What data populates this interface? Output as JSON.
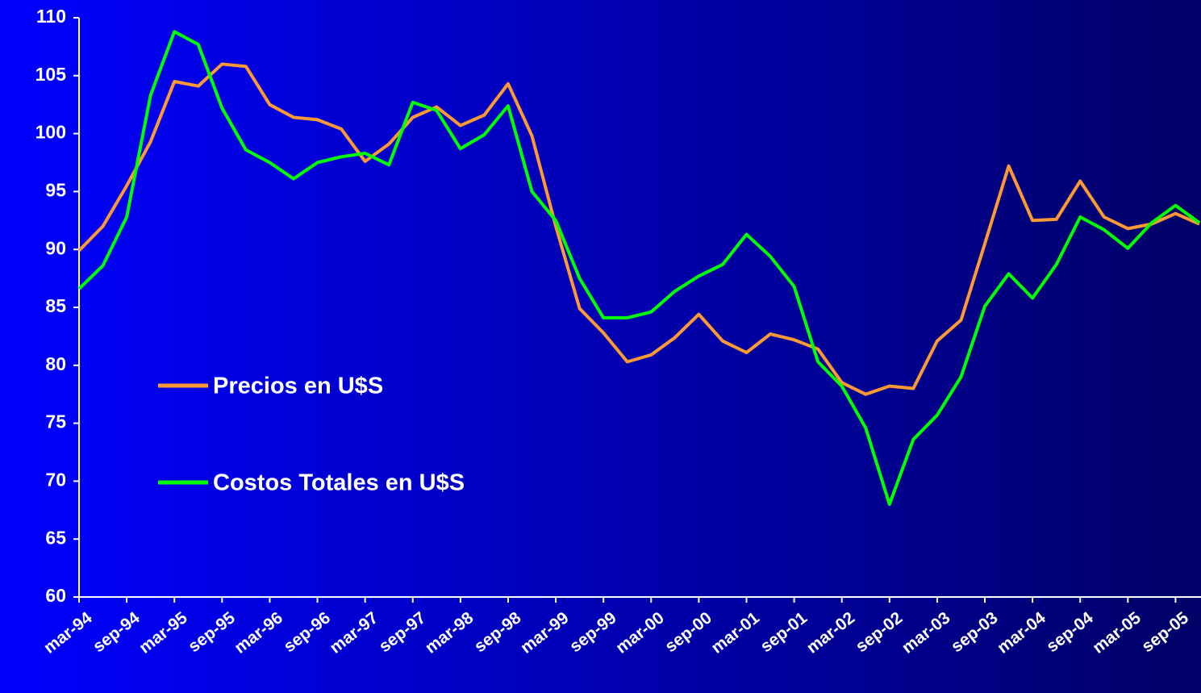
{
  "chart_data": {
    "type": "line",
    "categories": [
      "mar-94",
      null,
      "sep-94",
      null,
      "mar-95",
      null,
      "sep-95",
      null,
      "mar-96",
      null,
      "sep-96",
      null,
      "mar-97",
      null,
      "sep-97",
      null,
      "mar-98",
      null,
      "sep-98",
      null,
      "mar-99",
      null,
      "sep-99",
      null,
      "mar-00",
      null,
      "sep-00",
      null,
      "mar-01",
      null,
      "sep-01",
      null,
      "mar-02",
      null,
      "sep-02",
      null,
      "mar-03",
      null,
      "sep-03",
      null,
      "mar-04",
      null,
      "sep-04",
      null,
      "mar-05",
      null,
      "sep-05",
      null
    ],
    "series": [
      {
        "name": "Precios en U$S",
        "color": "#ff9933",
        "values": [
          89.9,
          92.0,
          95.5,
          99.3,
          104.5,
          104.1,
          106.0,
          105.8,
          102.5,
          101.4,
          101.2,
          100.4,
          97.6,
          99.1,
          101.4,
          102.3,
          100.7,
          101.6,
          104.3,
          99.8,
          92.0,
          84.9,
          82.8,
          80.3,
          80.9,
          82.4,
          84.4,
          82.1,
          81.1,
          82.7,
          82.2,
          81.4,
          78.5,
          77.5,
          78.2,
          78.0,
          82.1,
          83.9,
          90.5,
          97.2,
          92.5,
          92.6,
          95.9,
          92.8,
          91.8,
          92.2,
          93.1,
          92.2
        ]
      },
      {
        "name": "Costos Totales en U$S",
        "color": "#00ff00",
        "values": [
          86.6,
          88.6,
          92.8,
          103.3,
          108.8,
          107.7,
          102.2,
          98.6,
          97.5,
          96.1,
          97.5,
          98.0,
          98.3,
          97.3,
          102.7,
          102.0,
          98.7,
          99.9,
          102.4,
          95.0,
          92.5,
          87.5,
          84.1,
          84.1,
          84.6,
          86.4,
          87.7,
          88.7,
          91.3,
          89.4,
          86.8,
          80.3,
          78.2,
          74.6,
          68.0,
          73.6,
          75.7,
          79.0,
          85.1,
          87.9,
          85.8,
          88.7,
          92.8,
          91.7,
          90.1,
          92.3,
          93.8,
          92.3
        ]
      }
    ],
    "ylim": [
      60,
      110
    ],
    "yticks": [
      60,
      65,
      70,
      75,
      80,
      85,
      90,
      95,
      100,
      105,
      110
    ]
  }
}
